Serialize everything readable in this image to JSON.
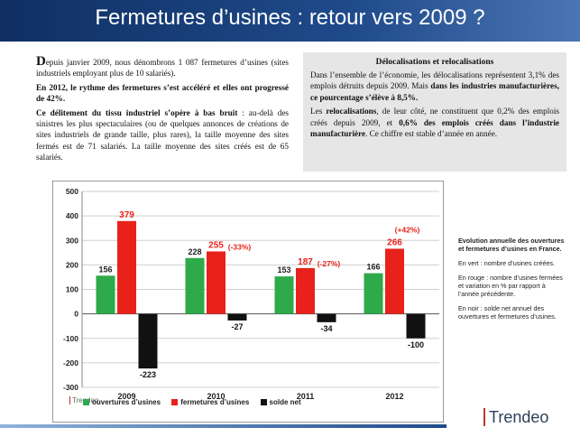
{
  "header": {
    "title": "Fermetures d’usines : retour vers 2009 ?"
  },
  "intro": {
    "p1_initial": "D",
    "p1_rest": "epuis janvier 2009, nous dénombrons 1 087 fermetures d’usines (sites industriels employant plus de 10 salariés).",
    "p2": "En 2012, le rythme des fermetures s’est accéléré et elles ont progressé de 42%.",
    "p3_bold": "Ce délitement du tissu industriel s’opère à bas bruit",
    "p3_rest": " : au-delà des sinistres les plus spectaculaires (ou de quelques annonces de créations de sites industriels de grande taille, plus rares), la taille moyenne des sites fermés est de 71 salariés. La taille moyenne des sites créés est de 65 salariés."
  },
  "box": {
    "title": "Délocalisations et relocalisations",
    "p1_a": "Dans l’ensemble de l’économie, les délocalisations représentent 3,1% des emplois détruits depuis 2009. Mais ",
    "p1_b": "dans les industries manufacturières, ce pourcentage s’élève à 8,5%.",
    "p2_a": "Les ",
    "p2_b": "relocalisations",
    "p2_c": ", de leur côté, ne constituent que 0,2% des emplois créés depuis 2009, et ",
    "p2_d": "0,6% des emplois créés dans l’industrie manufacturière",
    "p2_e": ". Ce chiffre est stable d’année en année."
  },
  "chart_data": {
    "type": "bar",
    "categories": [
      "2009",
      "2010",
      "2011",
      "2012"
    ],
    "series": [
      {
        "name": "ouvertures d’usines",
        "color": "#2eaa4a",
        "values": [
          156,
          228,
          153,
          166
        ]
      },
      {
        "name": "fermetures d’usines",
        "color": "#e8221b",
        "values": [
          379,
          255,
          187,
          266
        ]
      },
      {
        "name": "solde net",
        "color": "#111111",
        "values": [
          -223,
          -27,
          -34,
          -100
        ]
      }
    ],
    "variation_labels": [
      "",
      "(-33%)",
      "(-27%)",
      "(+42%)"
    ],
    "ylim": [
      -300,
      500
    ],
    "yticks": [
      500,
      400,
      300,
      200,
      100,
      0,
      -100,
      -200,
      -300
    ],
    "grid": true,
    "legend": "bottom"
  },
  "chart_brand": "Trendeo",
  "side": {
    "main": "Evolution annuelle des ouvertures et fermetures d’usines en France.",
    "green": "En vert : nombre d’usines créées.",
    "red": "En rouge : nombre d’usines fermées et variation en % par rapport à l’année précédente.",
    "black": "En noir : solde net annuel des ouvertures et fermetures d’usines."
  },
  "brand": "Trendeo"
}
